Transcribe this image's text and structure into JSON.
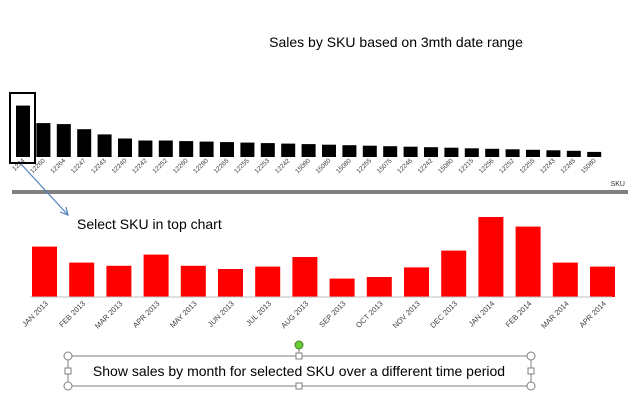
{
  "top_chart_title": "Sales by SKU based on 3mth date range",
  "colors": {
    "top_bar": "#000000",
    "bottom_bar": "#ff0000",
    "callout_line": "#4f81bd",
    "handle_green": "#66cc33"
  },
  "chart_data": [
    {
      "type": "bar",
      "title": "Sales by SKU based on 3mth date range",
      "xlabel": "SKU",
      "ylabel": "",
      "categories": [
        "1224",
        "12260",
        "12264",
        "12247",
        "12243",
        "12240",
        "12242",
        "12252",
        "12260",
        "12280",
        "12265",
        "12255",
        "12253",
        "12242",
        "15080",
        "15080",
        "15080",
        "12255",
        "15075",
        "12246",
        "12242",
        "15080",
        "12215",
        "12256",
        "12252",
        "12255",
        "12243",
        "12245",
        "15080"
      ],
      "values": [
        100,
        66,
        64,
        54,
        44,
        36,
        32,
        32,
        31,
        30,
        29,
        28,
        27,
        26,
        25,
        24,
        23,
        22,
        21,
        20,
        19,
        18,
        17,
        16,
        15,
        14,
        13,
        12,
        10
      ],
      "ylim": [
        0,
        110
      ],
      "selected_index": 0
    },
    {
      "type": "bar",
      "title": "",
      "xlabel": "",
      "ylabel": "",
      "categories": [
        "JAN 2013",
        "FEB 2013",
        "MAR 2013",
        "APR 2013",
        "MAY 2013",
        "JUN 2013",
        "JUL 2013",
        "AUG 2013",
        "SEP 2013",
        "OCT 2013",
        "NOV 2013",
        "DEC 2013",
        "JAN 2014",
        "FEB 2014",
        "MAR 2014",
        "APR 2014"
      ],
      "values": [
        63,
        43,
        39,
        53,
        39,
        35,
        38,
        50,
        23,
        25,
        37,
        58,
        100,
        88,
        43,
        38
      ],
      "ylim": [
        0,
        100
      ]
    }
  ],
  "annotations": {
    "select_sku": "Select SKU in top chart",
    "show_sales": "Show sales by month for selected SKU over a different time period"
  }
}
